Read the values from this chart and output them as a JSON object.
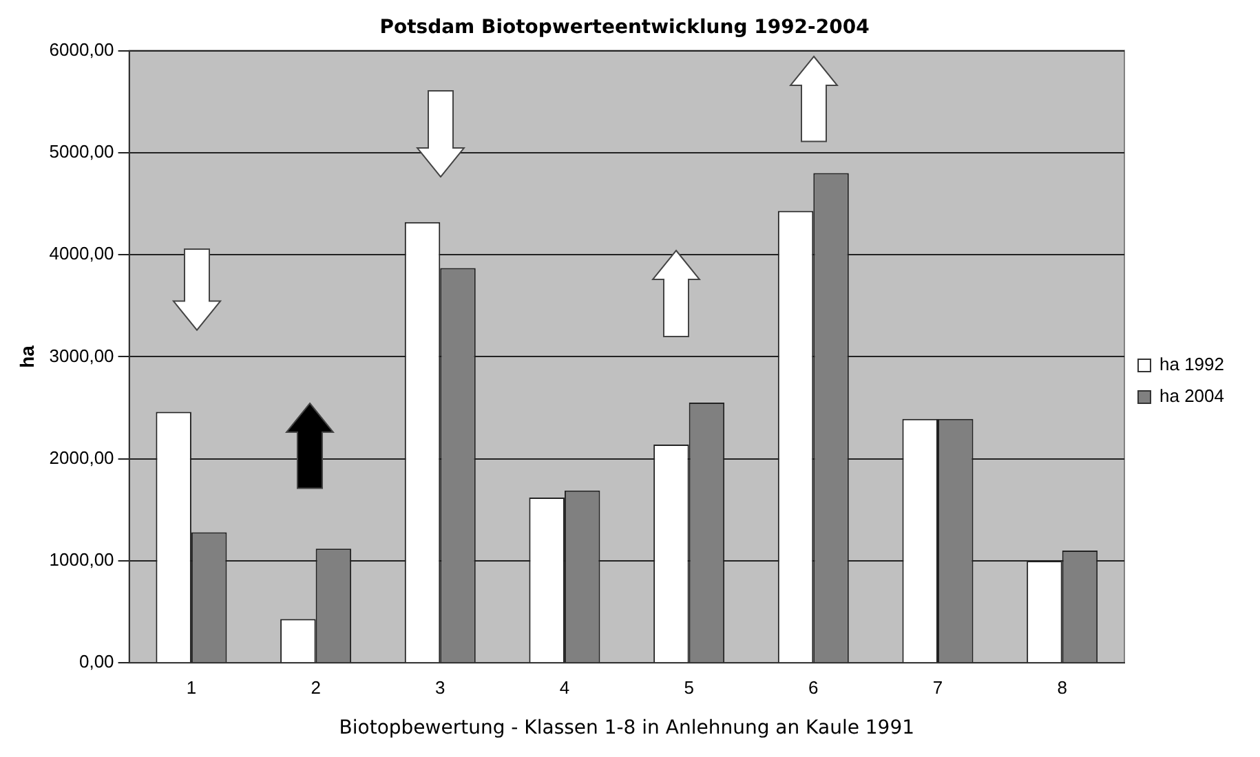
{
  "chart_data": {
    "type": "bar",
    "title": "Potsdam Biotopwerteentwicklung 1992-2004",
    "xlabel": "Biotopbewertung - Klassen 1-8 in Anlehnung an Kaule 1991",
    "ylabel": "ha",
    "categories": [
      "1",
      "2",
      "3",
      "4",
      "5",
      "6",
      "7",
      "8"
    ],
    "series": [
      {
        "name": "ha 1992",
        "color": "#ffffff",
        "values": [
          2460,
          430,
          4320,
          1620,
          2140,
          4430,
          2390,
          1000
        ]
      },
      {
        "name": "ha 2004",
        "color": "#808080",
        "values": [
          1280,
          1120,
          3870,
          1690,
          2550,
          4800,
          2390,
          1100
        ]
      }
    ],
    "ylim": [
      0,
      6000
    ],
    "yticks": [
      {
        "value": 0,
        "label": "0,00"
      },
      {
        "value": 1000,
        "label": "1000,00"
      },
      {
        "value": 2000,
        "label": "2000,00"
      },
      {
        "value": 3000,
        "label": "3000,00"
      },
      {
        "value": 4000,
        "label": "4000,00"
      },
      {
        "value": 5000,
        "label": "5000,00"
      },
      {
        "value": 6000,
        "label": "6000,00"
      }
    ],
    "grid": "y",
    "legend": "right"
  }
}
